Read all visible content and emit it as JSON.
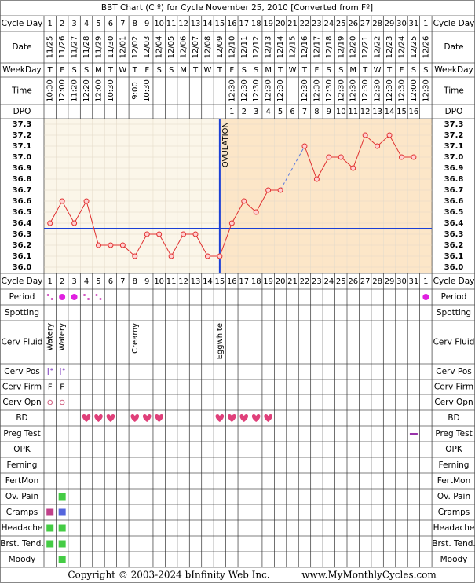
{
  "title": "BBT Chart (C º) for Cycle November 25, 2010  [Converted from Fº]",
  "copyright": "Copyright © 2003-2024 bInfinity Web Inc.",
  "site": "www.MyMonthlyCycles.com",
  "header": {
    "cycle_day_label": "Cycle Day",
    "date_label": "Date",
    "weekday_label": "WeekDay",
    "time_label": "Time",
    "dpo_label": "DPO"
  },
  "cycle_days": [
    1,
    2,
    3,
    4,
    5,
    6,
    7,
    8,
    9,
    10,
    11,
    12,
    13,
    14,
    15,
    16,
    17,
    18,
    19,
    20,
    21,
    22,
    23,
    24,
    25,
    26,
    27,
    28,
    29,
    30,
    31,
    1
  ],
  "dates": [
    "11/25",
    "11/26",
    "11/27",
    "11/28",
    "11/29",
    "11/30",
    "12/01",
    "12/02",
    "12/03",
    "12/04",
    "12/05",
    "12/06",
    "12/07",
    "12/08",
    "12/09",
    "12/10",
    "12/11",
    "12/12",
    "12/13",
    "12/14",
    "12/15",
    "12/16",
    "12/17",
    "12/18",
    "12/19",
    "12/20",
    "12/21",
    "12/22",
    "12/23",
    "12/24",
    "12/25",
    "12/26"
  ],
  "weekdays": [
    "T",
    "F",
    "S",
    "S",
    "M",
    "T",
    "W",
    "T",
    "F",
    "S",
    "S",
    "M",
    "T",
    "W",
    "T",
    "F",
    "S",
    "S",
    "M",
    "T",
    "W",
    "T",
    "F",
    "S",
    "S",
    "M",
    "T",
    "W",
    "T",
    "F",
    "S",
    "S"
  ],
  "times": [
    "10:30",
    "12:00",
    "11:20",
    "12:20",
    "12:00",
    "10:30",
    null,
    "9:00",
    "10:30",
    null,
    null,
    null,
    null,
    null,
    null,
    "12:30",
    "12:30",
    "12:30",
    "12:30",
    "12:30",
    null,
    "12:30",
    "12:30",
    "12:30",
    "12:30",
    "12:30",
    "12:30",
    "12:30",
    "12:30",
    "12:30",
    "12:00",
    "12:30"
  ],
  "dpo": [
    null,
    null,
    null,
    null,
    null,
    null,
    null,
    null,
    null,
    null,
    null,
    null,
    null,
    null,
    null,
    1,
    2,
    3,
    4,
    5,
    6,
    7,
    8,
    9,
    10,
    11,
    12,
    13,
    14,
    15,
    16,
    null
  ],
  "chart_data": {
    "type": "line",
    "values": [
      36.4,
      36.6,
      36.4,
      36.6,
      36.2,
      36.2,
      36.2,
      36.1,
      36.3,
      36.3,
      36.1,
      36.3,
      36.3,
      36.1,
      36.1,
      36.4,
      36.6,
      36.5,
      36.7,
      36.7,
      null,
      37.1,
      36.8,
      37.0,
      37.0,
      36.9,
      37.2,
      37.1,
      37.2,
      37.0,
      37.0,
      null
    ],
    "ylim": [
      36.0,
      37.3
    ],
    "yticks": [
      37.3,
      37.2,
      37.1,
      {
        "value": 37.0,
        "label": "37.0"
      },
      36.9,
      36.8,
      36.7,
      36.6,
      36.5,
      36.4,
      36.3,
      36.2,
      36.1,
      {
        "value": 36.0,
        "label": "36.0"
      }
    ],
    "grid": true,
    "color": "#e03030",
    "coverline": 36.35,
    "coverline_color": "#1a3fd6",
    "ovulation_day": 15,
    "annotation": "OVULATION",
    "gap_style": "dashed"
  },
  "rows": [
    {
      "label": "Period",
      "marks": [
        {
          "col": 1,
          "kind": "spot"
        },
        {
          "col": 2,
          "kind": "dot"
        },
        {
          "col": 3,
          "kind": "dot"
        },
        {
          "col": 4,
          "kind": "spot"
        },
        {
          "col": 5,
          "kind": "spot"
        },
        {
          "col": 32,
          "kind": "dot"
        }
      ]
    },
    {
      "label": "Spotting"
    },
    {
      "label": "Cerv Fluid",
      "texts": [
        {
          "col": 1,
          "text": "Watery"
        },
        {
          "col": 2,
          "text": "Watery"
        },
        {
          "col": 8,
          "text": "Creamy"
        },
        {
          "col": 15,
          "text": "Eggwhite"
        }
      ]
    },
    {
      "label": "Cerv Pos",
      "marks": [
        {
          "col": 1,
          "kind": "pos"
        },
        {
          "col": 2,
          "kind": "pos"
        }
      ]
    },
    {
      "label": "Cerv Firm",
      "texts": [
        {
          "col": 1,
          "text": "F"
        },
        {
          "col": 2,
          "text": "F"
        }
      ]
    },
    {
      "label": "Cerv Opn",
      "marks": [
        {
          "col": 1,
          "kind": "ring"
        },
        {
          "col": 2,
          "kind": "ring"
        }
      ]
    },
    {
      "label": "BD",
      "marks": [
        {
          "col": 4,
          "kind": "heart"
        },
        {
          "col": 5,
          "kind": "heart"
        },
        {
          "col": 6,
          "kind": "heart"
        },
        {
          "col": 8,
          "kind": "heart"
        },
        {
          "col": 9,
          "kind": "heart"
        },
        {
          "col": 10,
          "kind": "heart"
        },
        {
          "col": 15,
          "kind": "heart"
        },
        {
          "col": 16,
          "kind": "heart"
        },
        {
          "col": 17,
          "kind": "heart"
        },
        {
          "col": 18,
          "kind": "heart"
        },
        {
          "col": 19,
          "kind": "heart"
        }
      ]
    },
    {
      "label": "Preg Test",
      "marks": [
        {
          "col": 31,
          "kind": "dash"
        }
      ]
    },
    {
      "label": "OPK"
    },
    {
      "label": "Ferning"
    },
    {
      "label": "FertMon"
    },
    {
      "label": "Ov. Pain",
      "marks": [
        {
          "col": 2,
          "kind": "square",
          "color": "#44cc44"
        }
      ]
    },
    {
      "label": "Cramps",
      "marks": [
        {
          "col": 1,
          "kind": "square",
          "color": "#c0408a"
        },
        {
          "col": 2,
          "kind": "square",
          "color": "#5566dd"
        }
      ]
    },
    {
      "label": "Headache",
      "marks": [
        {
          "col": 1,
          "kind": "square",
          "color": "#44cc44"
        },
        {
          "col": 2,
          "kind": "square",
          "color": "#44cc44"
        }
      ]
    },
    {
      "label": "Brst. Tend.",
      "marks": [
        {
          "col": 1,
          "kind": "square",
          "color": "#44cc44"
        },
        {
          "col": 2,
          "kind": "square",
          "color": "#44cc44"
        }
      ]
    },
    {
      "label": "Moody",
      "marks": [
        {
          "col": 2,
          "kind": "square",
          "color": "#44cc44"
        }
      ]
    }
  ]
}
